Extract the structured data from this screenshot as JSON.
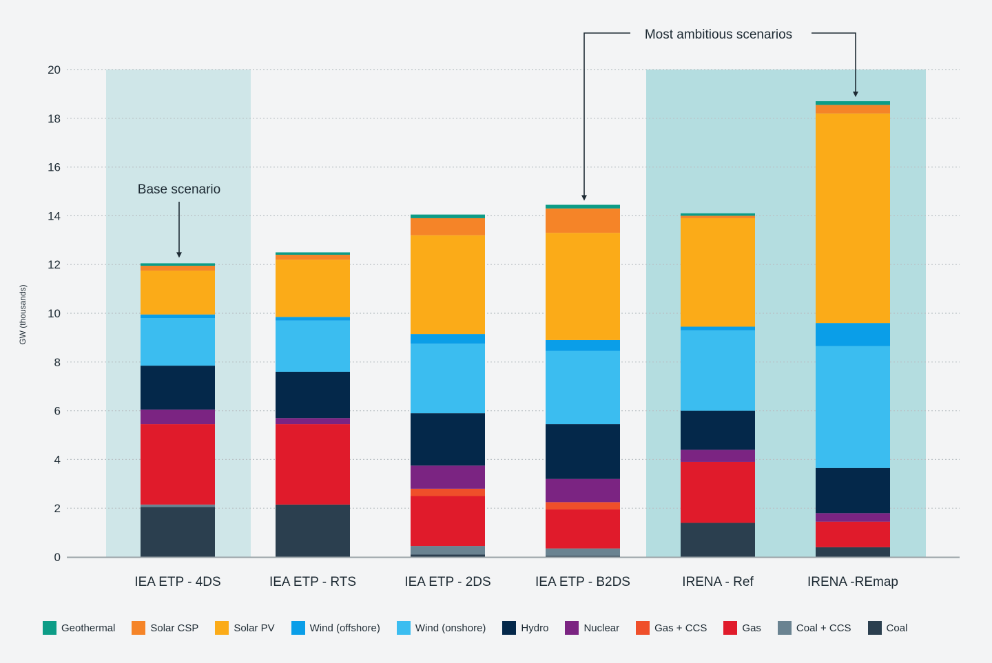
{
  "chart_data": {
    "type": "bar",
    "stacked": true,
    "title": "",
    "ylabel": "GW (thousands)",
    "xlabel": "",
    "ylim": [
      0,
      20
    ],
    "yticks": [
      0,
      2,
      4,
      6,
      8,
      10,
      12,
      14,
      16,
      18,
      20
    ],
    "grid": true,
    "categories": [
      "IEA ETP - 4DS",
      "IEA ETP - RTS",
      "IEA ETP - 2DS",
      "IEA ETP - B2DS",
      "IRENA - Ref",
      "IRENA -REmap"
    ],
    "series": [
      {
        "name": "Coal",
        "color": "#2b3f4f",
        "values": [
          2.05,
          2.15,
          0.1,
          0.05,
          1.4,
          0.4
        ]
      },
      {
        "name": "Coal + CCS",
        "color": "#6a8391",
        "values": [
          0.1,
          0.0,
          0.35,
          0.3,
          0.0,
          0.0
        ]
      },
      {
        "name": "Gas",
        "color": "#e01b2b",
        "values": [
          3.3,
          3.3,
          2.05,
          1.6,
          2.5,
          1.05
        ]
      },
      {
        "name": "Gas + CCS",
        "color": "#ef4f2a",
        "values": [
          0.0,
          0.0,
          0.3,
          0.3,
          0.0,
          0.0
        ]
      },
      {
        "name": "Nuclear",
        "color": "#7b2482",
        "values": [
          0.6,
          0.25,
          0.95,
          0.95,
          0.5,
          0.35
        ]
      },
      {
        "name": "Hydro",
        "color": "#04284a",
        "values": [
          1.8,
          1.9,
          2.15,
          2.25,
          1.6,
          1.85
        ]
      },
      {
        "name": "Wind (onshore)",
        "color": "#3bbdf0",
        "values": [
          1.95,
          2.1,
          2.85,
          3.0,
          3.3,
          5.0
        ]
      },
      {
        "name": "Wind (offshore)",
        "color": "#0a9ee8",
        "values": [
          0.15,
          0.15,
          0.4,
          0.45,
          0.15,
          0.95
        ]
      },
      {
        "name": "Solar PV",
        "color": "#fbab18",
        "values": [
          1.8,
          2.35,
          4.05,
          4.4,
          4.45,
          8.6
        ]
      },
      {
        "name": "Solar CSP",
        "color": "#f58428",
        "values": [
          0.2,
          0.2,
          0.7,
          1.0,
          0.1,
          0.35
        ]
      },
      {
        "name": "Geothermal",
        "color": "#0c9c86",
        "values": [
          0.1,
          0.1,
          0.15,
          0.15,
          0.1,
          0.15
        ]
      }
    ],
    "legend_order": [
      "Geothermal",
      "Solar CSP",
      "Solar PV",
      "Wind (offshore)",
      "Wind (onshore)",
      "Hydro",
      "Nuclear",
      "Gas + CCS",
      "Gas",
      "Coal + CCS",
      "Coal"
    ],
    "legend_position": "bottom",
    "highlight_groups": [
      {
        "categories": [
          "IEA ETP - 4DS"
        ],
        "color": "#cfe6e8"
      },
      {
        "categories": [
          "IRENA - Ref",
          "IRENA -REmap"
        ],
        "color": "#b4dde0"
      }
    ],
    "annotations": [
      {
        "text": "Base scenario",
        "targets": [
          "IEA ETP - 4DS"
        ]
      },
      {
        "text": "Most ambitious scenarios",
        "targets": [
          "IEA ETP - B2DS",
          "IRENA -REmap"
        ]
      }
    ]
  }
}
